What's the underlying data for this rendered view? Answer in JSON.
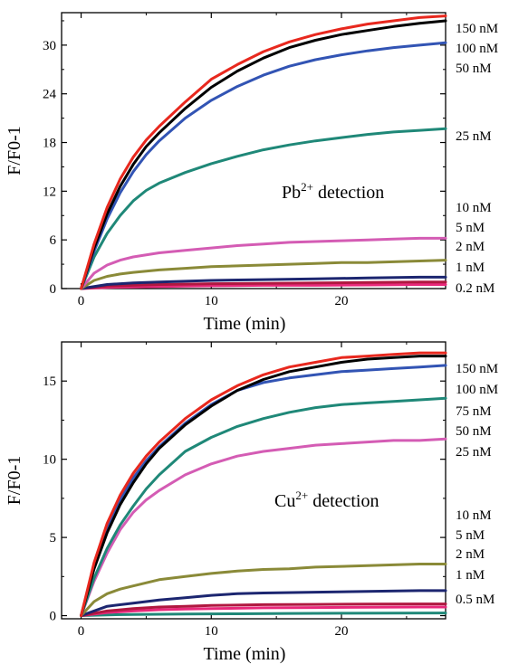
{
  "chart_data": [
    {
      "type": "line",
      "annotation": {
        "prefix": "Pb",
        "sup": "2+",
        "suffix": " detection"
      },
      "xlabel": "Time (min)",
      "ylabel": "F/F0-1",
      "xlim": [
        -1.5,
        28
      ],
      "ylim": [
        0,
        34
      ],
      "xticks": [
        0,
        10,
        20
      ],
      "yticks": [
        0,
        6,
        12,
        18,
        24,
        30
      ],
      "concentration_labels": [
        "150 nM",
        "100 nM",
        "50 nM",
        "25 nM",
        "10 nM",
        "5 nM",
        "2 nM",
        "1 nM",
        "0.2 nM"
      ],
      "series": [
        {
          "name": "150 nM",
          "color": "#e8281e",
          "x": [
            0,
            1,
            2,
            3,
            4,
            5,
            6,
            8,
            10,
            12,
            14,
            16,
            18,
            20,
            22,
            24,
            26,
            28
          ],
          "y": [
            0,
            5.5,
            10,
            13.5,
            16.2,
            18.3,
            20.0,
            23.0,
            25.8,
            27.6,
            29.2,
            30.4,
            31.3,
            32.0,
            32.6,
            33.0,
            33.4,
            33.6
          ]
        },
        {
          "name": "100 nM",
          "color": "#000000",
          "x": [
            0,
            1,
            2,
            3,
            4,
            5,
            6,
            8,
            10,
            12,
            14,
            16,
            18,
            20,
            22,
            24,
            26,
            28
          ],
          "y": [
            0,
            5.0,
            9.2,
            12.6,
            15.3,
            17.5,
            19.2,
            22.2,
            24.8,
            26.8,
            28.4,
            29.7,
            30.6,
            31.3,
            31.8,
            32.3,
            32.7,
            33.0
          ]
        },
        {
          "name": "50 nM",
          "color": "#3254b4",
          "x": [
            0,
            1,
            2,
            3,
            4,
            5,
            6,
            8,
            10,
            12,
            14,
            16,
            18,
            20,
            22,
            24,
            26,
            28
          ],
          "y": [
            0,
            4.6,
            8.6,
            11.8,
            14.4,
            16.5,
            18.2,
            21.0,
            23.2,
            24.9,
            26.3,
            27.4,
            28.2,
            28.8,
            29.3,
            29.7,
            30.0,
            30.3
          ]
        },
        {
          "name": "25 nM",
          "color": "#1f8878",
          "x": [
            0,
            1,
            2,
            3,
            4,
            5,
            6,
            8,
            10,
            12,
            14,
            16,
            18,
            20,
            22,
            24,
            26,
            28
          ],
          "y": [
            0,
            3.9,
            6.8,
            9.0,
            10.8,
            12.1,
            13.0,
            14.3,
            15.4,
            16.3,
            17.1,
            17.7,
            18.2,
            18.6,
            19.0,
            19.3,
            19.5,
            19.7
          ]
        },
        {
          "name": "10 nM",
          "color": "#d45cb4",
          "x": [
            0,
            1,
            2,
            3,
            4,
            6,
            8,
            10,
            12,
            14,
            16,
            18,
            20,
            22,
            24,
            26,
            28
          ],
          "y": [
            0,
            1.9,
            2.9,
            3.5,
            3.9,
            4.4,
            4.7,
            5.0,
            5.3,
            5.5,
            5.7,
            5.8,
            5.9,
            6.0,
            6.1,
            6.2,
            6.2
          ]
        },
        {
          "name": "5 nM",
          "color": "#8a8a38",
          "x": [
            0,
            1,
            2,
            3,
            4,
            6,
            8,
            10,
            12,
            14,
            16,
            18,
            20,
            22,
            24,
            26,
            28
          ],
          "y": [
            0,
            1.0,
            1.5,
            1.8,
            2.0,
            2.3,
            2.5,
            2.7,
            2.8,
            2.9,
            3.0,
            3.1,
            3.2,
            3.2,
            3.3,
            3.4,
            3.5
          ]
        },
        {
          "name": "2 nM",
          "color": "#1c2670",
          "x": [
            0,
            2,
            4,
            6,
            8,
            10,
            14,
            18,
            22,
            26,
            28
          ],
          "y": [
            0,
            0.5,
            0.7,
            0.8,
            0.9,
            1.0,
            1.1,
            1.2,
            1.3,
            1.4,
            1.4
          ]
        },
        {
          "name": "1 nM",
          "color": "#b01840",
          "x": [
            0,
            2,
            4,
            6,
            8,
            10,
            14,
            18,
            22,
            26,
            28
          ],
          "y": [
            0,
            0.3,
            0.4,
            0.5,
            0.55,
            0.6,
            0.65,
            0.7,
            0.75,
            0.8,
            0.8
          ]
        },
        {
          "name": "0.2 nM",
          "color": "#e8287a",
          "x": [
            0,
            2,
            4,
            6,
            8,
            10,
            14,
            18,
            22,
            26,
            28
          ],
          "y": [
            0,
            0.15,
            0.2,
            0.25,
            0.3,
            0.35,
            0.4,
            0.4,
            0.45,
            0.5,
            0.5
          ]
        }
      ]
    },
    {
      "type": "line",
      "annotation": {
        "prefix": "Cu",
        "sup": "2+",
        "suffix": " detection"
      },
      "xlabel": "Time (min)",
      "ylabel": "F/F0-1",
      "xlim": [
        -1.5,
        28
      ],
      "ylim": [
        -0.2,
        17.5
      ],
      "xticks": [
        0,
        10,
        20
      ],
      "yticks": [
        0,
        5,
        10,
        15
      ],
      "concentration_labels": [
        "150 nM",
        "100 nM",
        "75 nM",
        "50 nM",
        "25 nM",
        "10 nM",
        "5 nM",
        "2 nM",
        "1 nM",
        "0.5 nM"
      ],
      "series": [
        {
          "name": "150 nM",
          "color": "#e8281e",
          "x": [
            0,
            1,
            2,
            3,
            4,
            5,
            6,
            8,
            10,
            12,
            14,
            16,
            18,
            20,
            22,
            24,
            26,
            28
          ],
          "y": [
            0,
            3.4,
            5.9,
            7.7,
            9.1,
            10.2,
            11.1,
            12.6,
            13.8,
            14.7,
            15.4,
            15.9,
            16.2,
            16.5,
            16.6,
            16.7,
            16.8,
            16.8
          ]
        },
        {
          "name": "100 nM",
          "color": "#000000",
          "x": [
            0,
            1,
            2,
            3,
            4,
            5,
            6,
            8,
            10,
            12,
            14,
            16,
            18,
            20,
            22,
            24,
            26,
            28
          ],
          "y": [
            0,
            3.0,
            5.3,
            7.1,
            8.5,
            9.7,
            10.7,
            12.2,
            13.4,
            14.4,
            15.1,
            15.6,
            15.9,
            16.2,
            16.4,
            16.5,
            16.6,
            16.6
          ]
        },
        {
          "name": "75 nM",
          "color": "#3254b4",
          "x": [
            0,
            1,
            2,
            3,
            4,
            5,
            6,
            8,
            10,
            12,
            14,
            16,
            18,
            20,
            22,
            24,
            26,
            28
          ],
          "y": [
            0,
            3.2,
            5.6,
            7.4,
            8.8,
            9.9,
            10.8,
            12.3,
            13.5,
            14.4,
            14.9,
            15.2,
            15.4,
            15.6,
            15.7,
            15.8,
            15.9,
            16.0
          ]
        },
        {
          "name": "50 nM",
          "color": "#1f8878",
          "x": [
            0,
            1,
            2,
            3,
            4,
            5,
            6,
            8,
            10,
            12,
            14,
            16,
            18,
            20,
            22,
            24,
            26,
            28
          ],
          "y": [
            0,
            2.4,
            4.3,
            5.8,
            7.0,
            8.1,
            9.0,
            10.5,
            11.4,
            12.1,
            12.6,
            13.0,
            13.3,
            13.5,
            13.6,
            13.7,
            13.8,
            13.9
          ]
        },
        {
          "name": "25 nM",
          "color": "#d45cb4",
          "x": [
            0,
            1,
            2,
            3,
            4,
            5,
            6,
            8,
            10,
            12,
            14,
            16,
            18,
            20,
            22,
            24,
            26,
            28
          ],
          "y": [
            0,
            2.2,
            4.0,
            5.5,
            6.6,
            7.4,
            8.0,
            9.0,
            9.7,
            10.2,
            10.5,
            10.7,
            10.9,
            11.0,
            11.1,
            11.2,
            11.2,
            11.3
          ]
        },
        {
          "name": "10 nM",
          "color": "#8a8a38",
          "x": [
            0,
            1,
            2,
            3,
            4,
            6,
            8,
            10,
            12,
            14,
            16,
            18,
            20,
            22,
            24,
            26,
            28
          ],
          "y": [
            0,
            0.9,
            1.4,
            1.7,
            1.9,
            2.3,
            2.5,
            2.7,
            2.85,
            2.95,
            3.0,
            3.1,
            3.15,
            3.2,
            3.25,
            3.3,
            3.3
          ]
        },
        {
          "name": "5 nM",
          "color": "#1c2670",
          "x": [
            0,
            2,
            4,
            6,
            8,
            10,
            12,
            14,
            18,
            22,
            26,
            28
          ],
          "y": [
            0,
            0.6,
            0.8,
            1.0,
            1.15,
            1.3,
            1.4,
            1.45,
            1.5,
            1.55,
            1.6,
            1.6
          ]
        },
        {
          "name": "2 nM",
          "color": "#b01840",
          "x": [
            0,
            2,
            4,
            6,
            8,
            10,
            14,
            18,
            22,
            26,
            28
          ],
          "y": [
            0,
            0.3,
            0.45,
            0.55,
            0.6,
            0.65,
            0.7,
            0.72,
            0.74,
            0.75,
            0.75
          ]
        },
        {
          "name": "1 nM",
          "color": "#e8287a",
          "x": [
            0,
            2,
            4,
            6,
            8,
            10,
            14,
            18,
            22,
            26,
            28
          ],
          "y": [
            0,
            0.2,
            0.3,
            0.38,
            0.42,
            0.45,
            0.5,
            0.52,
            0.54,
            0.55,
            0.55
          ]
        },
        {
          "name": "0.5 nM",
          "color": "#1f8878",
          "x": [
            0,
            2,
            4,
            8,
            12,
            16,
            20,
            24,
            28
          ],
          "y": [
            0,
            0.05,
            0.08,
            0.1,
            0.12,
            0.14,
            0.15,
            0.16,
            0.17
          ]
        }
      ]
    }
  ]
}
